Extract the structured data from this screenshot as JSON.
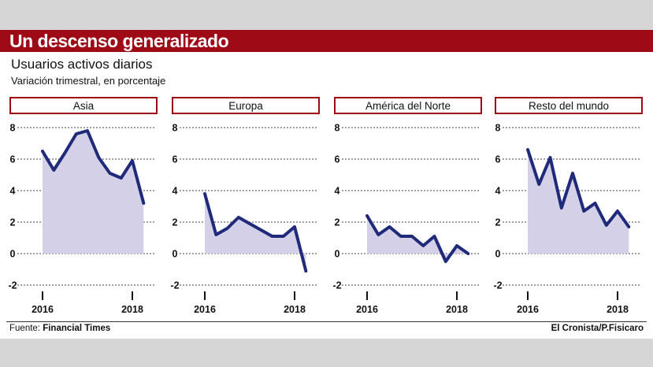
{
  "header": {
    "title": "Un descenso generalizado",
    "subtitle": "Usuarios activos diarios",
    "subsubtitle": "Variación trimestral, en porcentaje"
  },
  "footer": {
    "source_label": "Fuente:",
    "source_name": "Financial Times",
    "credit": "El Cronista/P.Fisicaro"
  },
  "colors": {
    "banner": "#9e0b16",
    "panel_border": "#9e0b16",
    "line": "#1f2a7a",
    "area": "#d3d0e8"
  },
  "chart_data": [
    {
      "type": "area",
      "title": "Asia",
      "ylim": [
        -2,
        8
      ],
      "yticks": [
        "8",
        "6",
        "4",
        "2",
        "0",
        "-2"
      ],
      "xticks": [
        "2016",
        "2018"
      ],
      "grid": "dotted horizontal",
      "points": [
        {
          "x": 2016.0,
          "y": 6.5
        },
        {
          "x": 2016.25,
          "y": 5.3
        },
        {
          "x": 2016.5,
          "y": 6.4
        },
        {
          "x": 2016.75,
          "y": 7.6
        },
        {
          "x": 2017.0,
          "y": 7.8
        },
        {
          "x": 2017.25,
          "y": 6.1
        },
        {
          "x": 2017.5,
          "y": 5.1
        },
        {
          "x": 2017.75,
          "y": 4.8
        },
        {
          "x": 2018.0,
          "y": 5.9
        },
        {
          "x": 2018.25,
          "y": 3.2
        }
      ]
    },
    {
      "type": "area",
      "title": "Europa",
      "ylim": [
        -2,
        8
      ],
      "yticks": [
        "8",
        "6",
        "4",
        "2",
        "0",
        "-2"
      ],
      "xticks": [
        "2016",
        "2018"
      ],
      "grid": "dotted horizontal",
      "points": [
        {
          "x": 2016.0,
          "y": 3.8
        },
        {
          "x": 2016.25,
          "y": 1.2
        },
        {
          "x": 2016.5,
          "y": 1.6
        },
        {
          "x": 2016.75,
          "y": 2.3
        },
        {
          "x": 2017.0,
          "y": 1.9
        },
        {
          "x": 2017.25,
          "y": 1.5
        },
        {
          "x": 2017.5,
          "y": 1.1
        },
        {
          "x": 2017.75,
          "y": 1.1
        },
        {
          "x": 2018.0,
          "y": 1.7
        },
        {
          "x": 2018.25,
          "y": -1.1
        }
      ]
    },
    {
      "type": "area",
      "title": "América del Norte",
      "ylim": [
        -2,
        8
      ],
      "yticks": [
        "8",
        "6",
        "4",
        "2",
        "0",
        "-2"
      ],
      "xticks": [
        "2016",
        "2018"
      ],
      "grid": "dotted horizontal",
      "points": [
        {
          "x": 2016.0,
          "y": 2.4
        },
        {
          "x": 2016.25,
          "y": 1.2
        },
        {
          "x": 2016.5,
          "y": 1.7
        },
        {
          "x": 2016.75,
          "y": 1.1
        },
        {
          "x": 2017.0,
          "y": 1.1
        },
        {
          "x": 2017.25,
          "y": 0.5
        },
        {
          "x": 2017.5,
          "y": 1.1
        },
        {
          "x": 2017.75,
          "y": -0.5
        },
        {
          "x": 2018.0,
          "y": 0.5
        },
        {
          "x": 2018.25,
          "y": 0.0
        }
      ]
    },
    {
      "type": "area",
      "title": "Resto del mundo",
      "ylim": [
        -2,
        8
      ],
      "yticks": [
        "8",
        "6",
        "4",
        "2",
        "0",
        "-2"
      ],
      "xticks": [
        "2016",
        "2018"
      ],
      "grid": "dotted horizontal",
      "points": [
        {
          "x": 2016.0,
          "y": 6.6
        },
        {
          "x": 2016.25,
          "y": 4.4
        },
        {
          "x": 2016.5,
          "y": 6.1
        },
        {
          "x": 2016.75,
          "y": 2.9
        },
        {
          "x": 2017.0,
          "y": 5.1
        },
        {
          "x": 2017.25,
          "y": 2.7
        },
        {
          "x": 2017.5,
          "y": 3.2
        },
        {
          "x": 2017.75,
          "y": 1.8
        },
        {
          "x": 2018.0,
          "y": 2.7
        },
        {
          "x": 2018.25,
          "y": 1.7
        }
      ]
    }
  ]
}
